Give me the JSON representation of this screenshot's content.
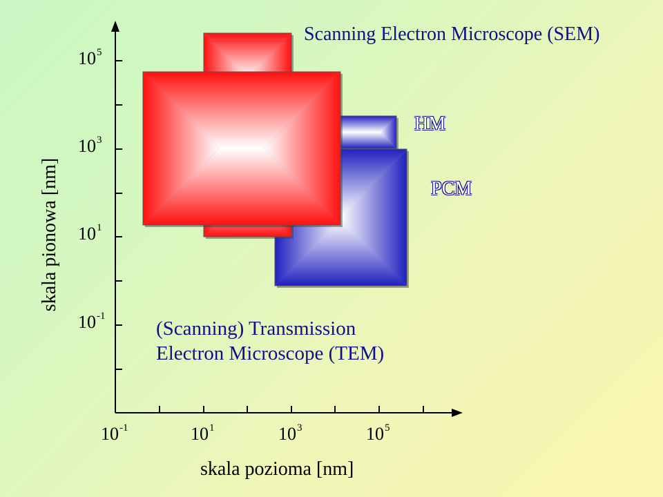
{
  "axes": {
    "y_title": "skala pionowa [nm]",
    "x_title": "skala pozioma [nm]",
    "y_ticks": [
      {
        "base": "10",
        "exp": "5"
      },
      {
        "base": "10",
        "exp": "3"
      },
      {
        "base": "10",
        "exp": "1"
      },
      {
        "base": "10",
        "exp": "-1"
      }
    ],
    "x_ticks": [
      {
        "base": "10",
        "exp": "-1"
      },
      {
        "base": "10",
        "exp": "1"
      },
      {
        "base": "10",
        "exp": "3"
      },
      {
        "base": "10",
        "exp": "5"
      }
    ]
  },
  "regions": {
    "sem": {
      "label": "Scanning Electron Microscope (SEM)",
      "color": "#ff1010"
    },
    "hm": {
      "label": "HM",
      "color": "#2020c0"
    },
    "pcm": {
      "label": "PCM",
      "color": "#2020c0"
    },
    "tem": {
      "line1": "(Scanning) Transmission",
      "line2": "Electron Microscope (TEM)"
    }
  },
  "colors": {
    "red": "#ff1010",
    "blue": "#2020c0",
    "label_blue": "#10108a"
  }
}
